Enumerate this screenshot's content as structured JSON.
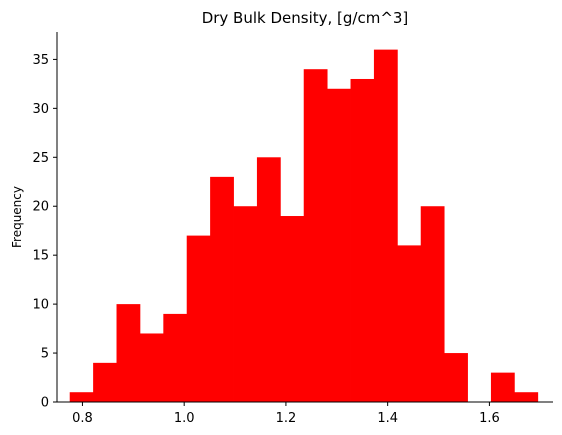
{
  "chart_data": {
    "type": "bar",
    "title": "Dry Bulk Density, [g/cm^3]",
    "xlabel": "",
    "ylabel": "Frequency",
    "bin_start": 0.775,
    "bin_width": 0.046,
    "values": [
      1,
      4,
      10,
      7,
      9,
      17,
      23,
      20,
      25,
      19,
      34,
      32,
      33,
      36,
      16,
      20,
      5,
      0,
      3,
      1
    ],
    "xlim": [
      0.75,
      1.725
    ],
    "ylim": [
      0,
      37.8
    ],
    "xticks": [
      0.8,
      1.0,
      1.2,
      1.4,
      1.6
    ],
    "xtick_labels": [
      "0.8",
      "1.0",
      "1.2",
      "1.4",
      "1.6"
    ],
    "yticks": [
      0,
      5,
      10,
      15,
      20,
      25,
      30,
      35
    ],
    "ytick_labels": [
      "0",
      "5",
      "10",
      "15",
      "20",
      "25",
      "30",
      "35"
    ],
    "bar_color": "#ff0000",
    "grid": false,
    "spines": "left-bottom"
  }
}
